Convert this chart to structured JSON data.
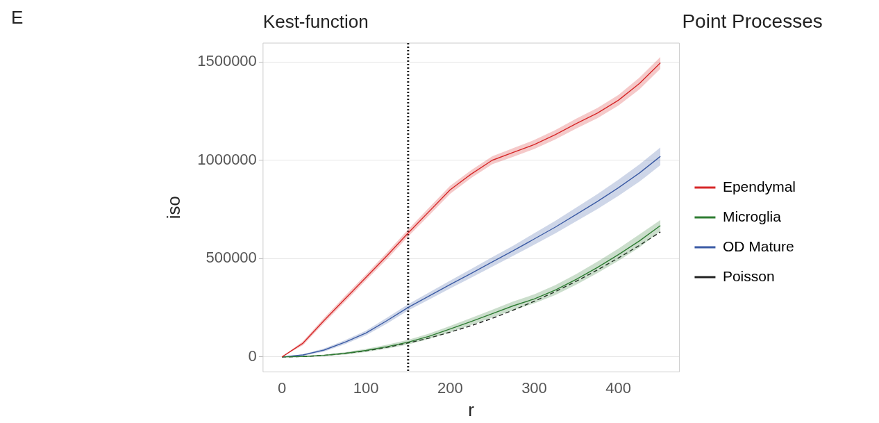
{
  "chart_data": {
    "type": "line",
    "title": "Kest-function",
    "xlabel": "r",
    "ylabel": "iso",
    "legend_title": "Point Processes",
    "legend": "right",
    "grid": "y",
    "annotations": [
      "E"
    ],
    "x": [
      0,
      25,
      50,
      75,
      100,
      125,
      150,
      175,
      200,
      225,
      250,
      275,
      300,
      325,
      350,
      375,
      400,
      425,
      450
    ],
    "xlim": [
      -22.5,
      472.5
    ],
    "xticks": [
      0,
      100,
      200,
      300,
      400
    ],
    "ylim": [
      -76000,
      1596000
    ],
    "yticks": [
      0,
      500000,
      1000000,
      1500000
    ],
    "ref_lines": [
      {
        "axis": "x",
        "value": 150,
        "color": "#222222",
        "line_style": "dotted"
      }
    ],
    "series": [
      {
        "name": "Ependymal",
        "color": "#d62728",
        "values": [
          0,
          70000,
          185000,
          295000,
          405000,
          515000,
          630000,
          740000,
          850000,
          930000,
          1000000,
          1040000,
          1080000,
          1130000,
          1187000,
          1240000,
          1305000,
          1390000,
          1495000
        ],
        "lower": [
          0,
          60000,
          172000,
          280000,
          390000,
          498000,
          612000,
          720000,
          830000,
          910000,
          980000,
          1018000,
          1057000,
          1106000,
          1162000,
          1214000,
          1278000,
          1360000,
          1465000
        ],
        "upper": [
          0,
          80000,
          198000,
          310000,
          420000,
          532000,
          648000,
          760000,
          870000,
          950000,
          1020000,
          1062000,
          1103000,
          1154000,
          1212000,
          1266000,
          1332000,
          1420000,
          1525000
        ]
      },
      {
        "name": "Microglia",
        "color": "#2e7d32",
        "values": [
          0,
          2000,
          8000,
          18000,
          33000,
          52000,
          75000,
          105000,
          142000,
          180000,
          220000,
          260000,
          295000,
          340000,
          395000,
          455000,
          520000,
          590000,
          668000
        ],
        "lower": [
          0,
          0,
          4000,
          12000,
          25000,
          42000,
          63000,
          91000,
          126000,
          162000,
          200000,
          238000,
          272000,
          315000,
          368000,
          426000,
          489000,
          557000,
          640000
        ],
        "upper": [
          0,
          4000,
          12000,
          24000,
          41000,
          62000,
          87000,
          119000,
          158000,
          198000,
          240000,
          282000,
          318000,
          365000,
          422000,
          484000,
          551000,
          623000,
          696000
        ]
      },
      {
        "name": "OD Mature",
        "color": "#3b5ba5",
        "values": [
          0,
          10000,
          35000,
          75000,
          122000,
          185000,
          252000,
          310000,
          368000,
          425000,
          483000,
          540000,
          600000,
          660000,
          725000,
          790000,
          860000,
          935000,
          1020000
        ],
        "lower": [
          0,
          6000,
          27000,
          65000,
          110000,
          170000,
          236000,
          292000,
          348000,
          403000,
          459000,
          514000,
          571000,
          628000,
          690000,
          752000,
          819000,
          891000,
          975000
        ],
        "upper": [
          0,
          14000,
          43000,
          85000,
          134000,
          200000,
          268000,
          328000,
          388000,
          447000,
          507000,
          566000,
          629000,
          692000,
          760000,
          828000,
          901000,
          979000,
          1065000
        ]
      },
      {
        "name": "Poisson",
        "color": "#222222",
        "line_style": "dashed",
        "values": [
          0,
          2000,
          8000,
          18000,
          31000,
          49000,
          71000,
          96000,
          126000,
          159000,
          196000,
          238000,
          283000,
          332000,
          385000,
          442000,
          503000,
          567000,
          636000
        ]
      }
    ]
  }
}
